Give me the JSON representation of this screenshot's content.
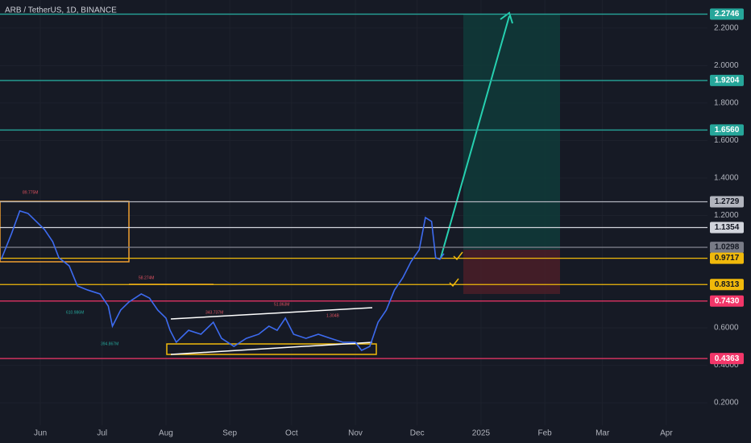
{
  "chart_data": {
    "type": "line",
    "title": "ARB / TetherUS, 1D, BINANCE",
    "color": "#3d6bf0",
    "x": [
      12,
      17,
      21,
      25,
      29,
      33,
      37,
      40,
      45,
      49,
      54,
      60,
      64,
      66,
      70,
      74,
      80,
      84,
      88,
      92,
      94,
      97,
      103,
      109,
      115,
      119,
      125,
      131,
      137,
      142,
      146,
      150,
      154,
      160,
      166,
      172,
      178,
      184,
      187,
      191,
      195,
      199,
      203,
      207,
      211,
      215,
      218,
      221,
      223,
      225,
      227
    ],
    "values": [
      0.966,
      1.103,
      1.224,
      1.211,
      1.168,
      1.125,
      1.06,
      0.974,
      0.931,
      0.824,
      0.802,
      0.781,
      0.716,
      0.609,
      0.695,
      0.738,
      0.781,
      0.759,
      0.695,
      0.652,
      0.587,
      0.523,
      0.587,
      0.566,
      0.63,
      0.544,
      0.501,
      0.544,
      0.566,
      0.609,
      0.587,
      0.652,
      0.566,
      0.544,
      0.566,
      0.544,
      0.523,
      0.523,
      0.48,
      0.501,
      0.63,
      0.695,
      0.802,
      0.867,
      0.953,
      1.017,
      1.189,
      1.168,
      0.974,
      0.966,
      0.996
    ],
    "xlim": [
      11.4,
      355
    ],
    "xticks": [
      {
        "value": 31,
        "label": "Jun"
      },
      {
        "value": 61,
        "label": "Jul"
      },
      {
        "value": 92,
        "label": "Aug"
      },
      {
        "value": 123,
        "label": "Sep"
      },
      {
        "value": 153,
        "label": "Oct"
      },
      {
        "value": 184,
        "label": "Nov"
      },
      {
        "value": 214,
        "label": "Dec"
      },
      {
        "value": 245,
        "label": "2025"
      },
      {
        "value": 276,
        "label": "Feb"
      },
      {
        "value": 304,
        "label": "Mar"
      },
      {
        "value": 335,
        "label": "Apr"
      }
    ],
    "ylim": [
      0.08,
      2.35
    ],
    "yticks": [
      {
        "value": 0.2,
        "label": "0.2000"
      },
      {
        "value": 0.4,
        "label": "0.4000"
      },
      {
        "value": 0.6,
        "label": "0.6000"
      },
      {
        "value": 1.2,
        "label": "1.2000"
      },
      {
        "value": 1.4,
        "label": "1.4000"
      },
      {
        "value": 1.6,
        "label": "1.6000"
      },
      {
        "value": 1.8,
        "label": "1.8000"
      },
      {
        "value": 2.0,
        "label": "2.0000"
      },
      {
        "value": 2.2,
        "label": "2.2000"
      }
    ],
    "grid": true,
    "levels": [
      {
        "value": 2.2746,
        "color": "#26a69a"
      },
      {
        "value": 1.9204,
        "color": "#26a69a"
      },
      {
        "value": 1.656,
        "label": "1.6560",
        "color": "#26a69a"
      },
      {
        "value": 1.2729,
        "color": "#b2b5be"
      },
      {
        "value": 1.1354,
        "color": "#d1d4dc"
      },
      {
        "value": 1.0298,
        "color": "#787b86"
      },
      {
        "value": 0.9717,
        "color": "#f0b90b"
      },
      {
        "value": 0.8313,
        "color": "#f0b90b"
      },
      {
        "value": 0.743,
        "label": "0.7430",
        "color": "#f23669"
      },
      {
        "value": 0.4363,
        "color": "#f23669"
      }
    ],
    "annotations": [
      "89.775M",
      "58.274M",
      "343.737M",
      "51.863M",
      "1.304B",
      "610.986M",
      "394.867M"
    ]
  }
}
